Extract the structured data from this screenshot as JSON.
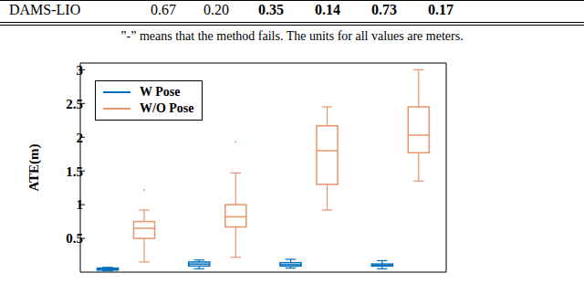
{
  "table": {
    "rows": [
      [
        "DAMS-LIO",
        "0.67",
        "0.20",
        "0.35",
        "0.14",
        "0.73",
        "0.17"
      ]
    ],
    "bold": [
      [
        false,
        false,
        false,
        true,
        true,
        true,
        true
      ]
    ]
  },
  "note": "”-” means that the method fails. The units for all values are meters.",
  "chart_data": {
    "type": "box",
    "y_label": "ATE(m)",
    "categories": [
      null,
      null,
      null,
      null
    ],
    "ylim": [
      0,
      3.1
    ],
    "yticks": [
      0.5,
      1,
      1.5,
      2,
      2.5,
      3
    ],
    "tick_labels": "y",
    "legend": "upper left",
    "series": [
      {
        "name": "W Pose",
        "color": "#0072bd",
        "min": [
          0.02,
          0.05,
          0.06,
          0.05
        ],
        "q1": [
          0.03,
          0.09,
          0.09,
          0.09
        ],
        "median": [
          0.05,
          0.12,
          0.11,
          0.1
        ],
        "q3": [
          0.06,
          0.15,
          0.14,
          0.12
        ],
        "max": [
          0.07,
          0.18,
          0.19,
          0.17
        ],
        "outliers": [
          [],
          [],
          [],
          []
        ]
      },
      {
        "name": "W/O Pose",
        "color": "#e8956a",
        "min": [
          0.15,
          0.22,
          0.92,
          1.35
        ],
        "q1": [
          0.5,
          0.67,
          1.3,
          1.77
        ],
        "median": [
          0.65,
          0.82,
          1.8,
          2.03
        ],
        "q3": [
          0.75,
          1.0,
          2.17,
          2.45
        ],
        "max": [
          0.92,
          1.47,
          2.45,
          3.0
        ],
        "outliers": [
          [
            1.22
          ],
          [
            1.93
          ],
          [],
          []
        ]
      }
    ]
  }
}
